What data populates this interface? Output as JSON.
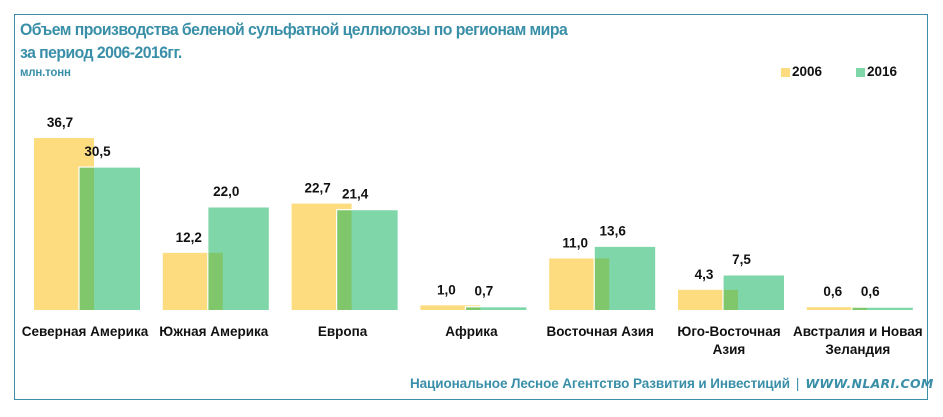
{
  "header": {
    "title_line1": "Объем производства беленой сульфатной целлюлозы по регионам мира",
    "title_line2": "за период 2006-2016гг.",
    "unit": "млн.тонн"
  },
  "footer": {
    "org": "Национальное Лесное Агентство  Развития и Инвестиций",
    "separator": "|",
    "url": "WWW.NLARI.COM"
  },
  "colors": {
    "frame": "#3b8ea5",
    "title": "#3a8fa8",
    "series_2006": "#fddc80",
    "series_2016": "#7fd6a8",
    "overlap": "#80c66a"
  },
  "chart_data": {
    "type": "bar",
    "title": "Объем производства беленой сульфатной целлюлозы по регионам мира за период 2006-2016гг.",
    "ylabel": "млн.тонн",
    "xlabel": "",
    "ylim": [
      0,
      37
    ],
    "grid": false,
    "legend_position": "top-right",
    "categories": [
      [
        "Северная Америка"
      ],
      [
        "Южная Америка"
      ],
      [
        "Европа"
      ],
      [
        "Африка"
      ],
      [
        "Восточная Азия"
      ],
      [
        "Юго-Восточная",
        "Азия"
      ],
      [
        "Австралия и Новая",
        "Зеландия"
      ]
    ],
    "series": [
      {
        "name": "2006",
        "values": [
          36.7,
          12.2,
          22.7,
          1.0,
          11.0,
          4.3,
          0.6
        ],
        "labels": [
          "36,7",
          "12,2",
          "22,7",
          "1,0",
          "11,0",
          "4,3",
          "0,6"
        ]
      },
      {
        "name": "2016",
        "values": [
          30.5,
          22.0,
          21.4,
          0.7,
          13.6,
          7.5,
          0.6
        ],
        "labels": [
          "30,5",
          "22,0",
          "21,4",
          "0,7",
          "13,6",
          "7,5",
          "0,6"
        ]
      }
    ]
  }
}
